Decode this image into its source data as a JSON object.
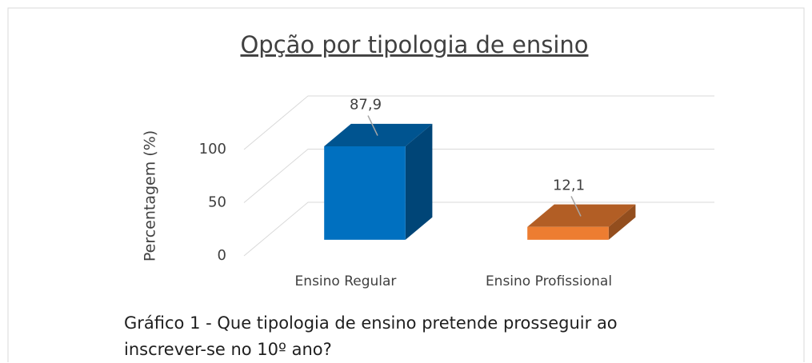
{
  "chart_data": {
    "type": "bar3d",
    "title": "Opção por tipologia de ensino",
    "y_label": "Percentagem (%)",
    "categories": [
      "Ensino Regular",
      "Ensino Profissional"
    ],
    "series": [
      {
        "name": "Percentagem",
        "values": [
          87.9,
          12.1
        ],
        "value_labels": [
          "87,9",
          "12,1"
        ]
      }
    ],
    "colors": [
      "#0070c0",
      "#ed7d31"
    ],
    "ylim": [
      0,
      100
    ],
    "yticks": [
      0,
      50,
      100
    ],
    "grid": true,
    "caption": "Gráfico 1 - Que tipologia de ensino pretende prosseguir ao inscrever-se no 10º ano?"
  }
}
